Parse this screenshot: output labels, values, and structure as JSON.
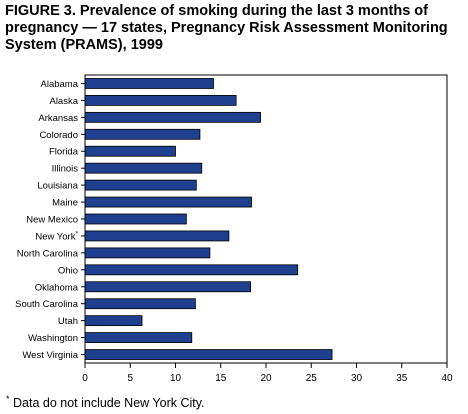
{
  "title": "FIGURE 3. Prevalence of smoking during the last 3 months of pregnancy — 17 states, Pregnancy Risk Assessment Monitoring System (PRAMS), 1999",
  "footnote": {
    "marker": "*",
    "text": " Data do not include New York City."
  },
  "chart_data": {
    "type": "bar",
    "orientation": "horizontal",
    "title": "FIGURE 3. Prevalence of smoking during the last 3 months of pregnancy — 17 states, Pregnancy Risk Assessment Monitoring System (PRAMS), 1999",
    "xlabel": "",
    "ylabel": "",
    "categories": [
      "Alabama",
      "Alaska",
      "Arkansas",
      "Colorado",
      "Florida",
      "Illinois",
      "Louisiana",
      "Maine",
      "New Mexico",
      "New York",
      "North Carolina",
      "Ohio",
      "Oklahoma",
      "South Carolina",
      "Utah",
      "Washington",
      "West Virginia"
    ],
    "category_markers": [
      "",
      "",
      "",
      "",
      "",
      "",
      "",
      "",
      "",
      "*",
      "",
      "",
      "",
      "",
      "",
      "",
      ""
    ],
    "values": [
      14.2,
      16.7,
      19.4,
      12.7,
      10.0,
      12.9,
      12.3,
      18.4,
      11.2,
      15.9,
      13.8,
      23.5,
      18.3,
      12.2,
      6.3,
      11.8,
      27.3
    ],
    "xlim": [
      0,
      40
    ],
    "xticks": [
      0,
      5,
      10,
      15,
      20,
      25,
      30,
      35,
      40
    ],
    "grid": false,
    "bar_color": "#1f3f8f"
  }
}
